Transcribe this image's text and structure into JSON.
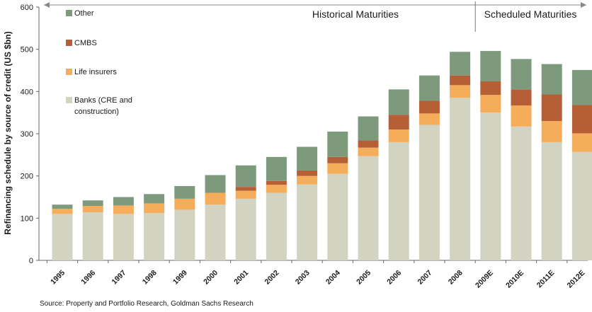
{
  "chart_data": {
    "type": "bar",
    "stacked": true,
    "ylabel": "Refinancing schedule by source of credit (US $bn)",
    "ylim": [
      0,
      600
    ],
    "yticks": [
      0,
      100,
      200,
      300,
      400,
      500,
      600
    ],
    "grid": false,
    "legend_position": "top-left",
    "categories": [
      "1995",
      "1996",
      "1997",
      "1998",
      "1999",
      "2000",
      "2001",
      "2002",
      "2003",
      "2004",
      "2005",
      "2006",
      "2007",
      "2008",
      "2009E",
      "2010E",
      "2011E",
      "2012E"
    ],
    "series": [
      {
        "name": "Banks (CRE and construction)",
        "label": "Banks (CRE and\nconstruction)",
        "color": "#d3d3c1",
        "values": [
          110,
          114,
          110,
          112,
          120,
          132,
          146,
          160,
          180,
          205,
          247,
          280,
          321,
          385,
          350,
          317,
          280,
          257
        ]
      },
      {
        "name": "Life insurers",
        "color": "#f5ad5b",
        "values": [
          12,
          15,
          20,
          23,
          26,
          28,
          19,
          19,
          20,
          25,
          20,
          30,
          27,
          30,
          42,
          50,
          50,
          44
        ]
      },
      {
        "name": "CMBS",
        "color": "#b65f37",
        "values": [
          0,
          0,
          0,
          0,
          0,
          0,
          9,
          9,
          13,
          15,
          17,
          35,
          30,
          23,
          32,
          38,
          63,
          67
        ]
      },
      {
        "name": "Other",
        "color": "#7d9a7d",
        "values": [
          10,
          13,
          20,
          22,
          30,
          42,
          51,
          57,
          56,
          60,
          57,
          60,
          60,
          56,
          72,
          72,
          72,
          83
        ]
      }
    ],
    "periods": [
      {
        "label": "Historical Maturities",
        "from": "1995",
        "to": "2008"
      },
      {
        "label": "Scheduled Maturities",
        "from": "2009E",
        "to": "2012E"
      }
    ]
  },
  "source": "Source: Property and Portfolio Research, Goldman Sachs Research"
}
